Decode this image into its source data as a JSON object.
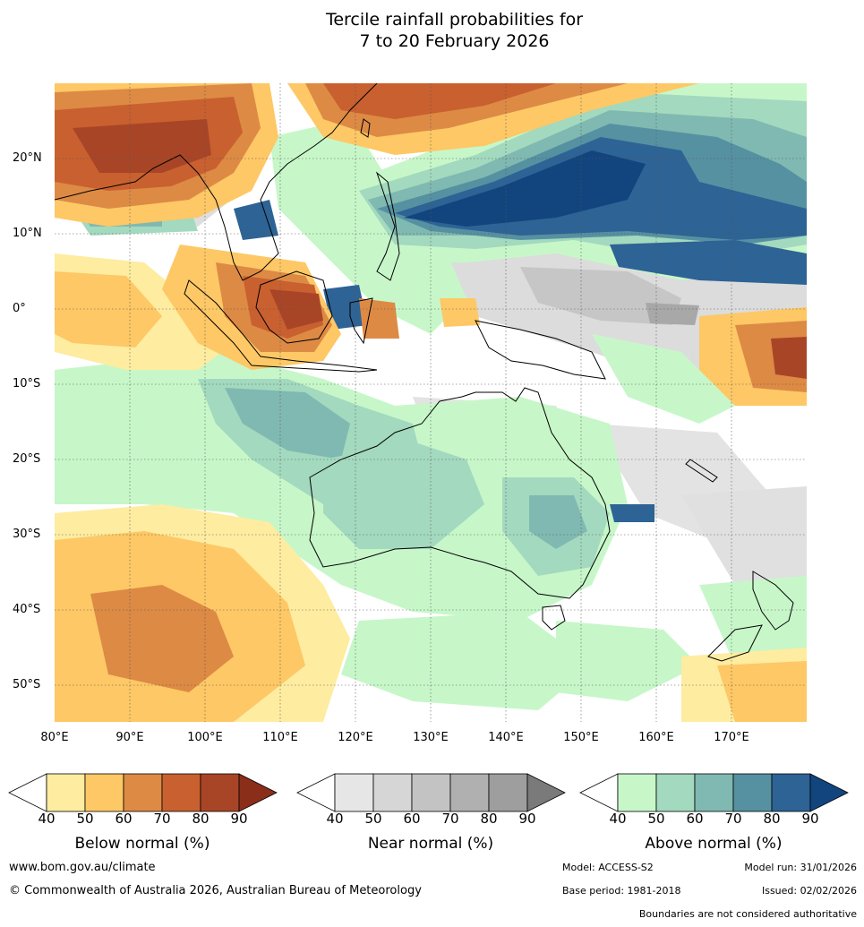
{
  "title": {
    "line1": "Tercile rainfall probabilities for",
    "line2": "7 to 20 February 2026"
  },
  "map": {
    "lat_labels": [
      "20°N",
      "10°N",
      "0°",
      "10°S",
      "20°S",
      "30°S",
      "40°S",
      "50°S"
    ],
    "lon_labels": [
      "80°E",
      "90°E",
      "100°E",
      "110°E",
      "120°E",
      "130°E",
      "140°E",
      "150°E",
      "160°E",
      "170°E"
    ]
  },
  "legend": {
    "below": {
      "label": "Below normal (%)",
      "ticks": [
        "40",
        "50",
        "60",
        "70",
        "80",
        "90"
      ],
      "colors": [
        "#ffffff",
        "#feeca0",
        "#fdc865",
        "#dd8a45",
        "#c9602f",
        "#a94527",
        "#8a2e1a"
      ]
    },
    "near": {
      "label": "Near normal (%)",
      "ticks": [
        "40",
        "50",
        "60",
        "70",
        "80",
        "90"
      ],
      "colors": [
        "#ffffff",
        "#e6e6e6",
        "#d6d6d6",
        "#c3c3c3",
        "#b0b0b0",
        "#9e9e9e",
        "#7a7a7a"
      ]
    },
    "above": {
      "label": "Above normal (%)",
      "ticks": [
        "40",
        "50",
        "60",
        "70",
        "80",
        "90"
      ],
      "colors": [
        "#ffffff",
        "#c7f7c9",
        "#a3d9be",
        "#80b9b1",
        "#5691a2",
        "#2e6395",
        "#12457e"
      ]
    }
  },
  "footer": {
    "url": "www.bom.gov.au/climate",
    "copyright": "© Commonwealth of Australia 2026, Australian Bureau of Meteorology",
    "model": "Model: ACCESS-S2",
    "model_run": "Model run: 31/01/2026",
    "base_period": "Base period: 1981-2018",
    "issued": "Issued: 02/02/2026",
    "disclaimer": "Boundaries are not considered authoritative"
  }
}
